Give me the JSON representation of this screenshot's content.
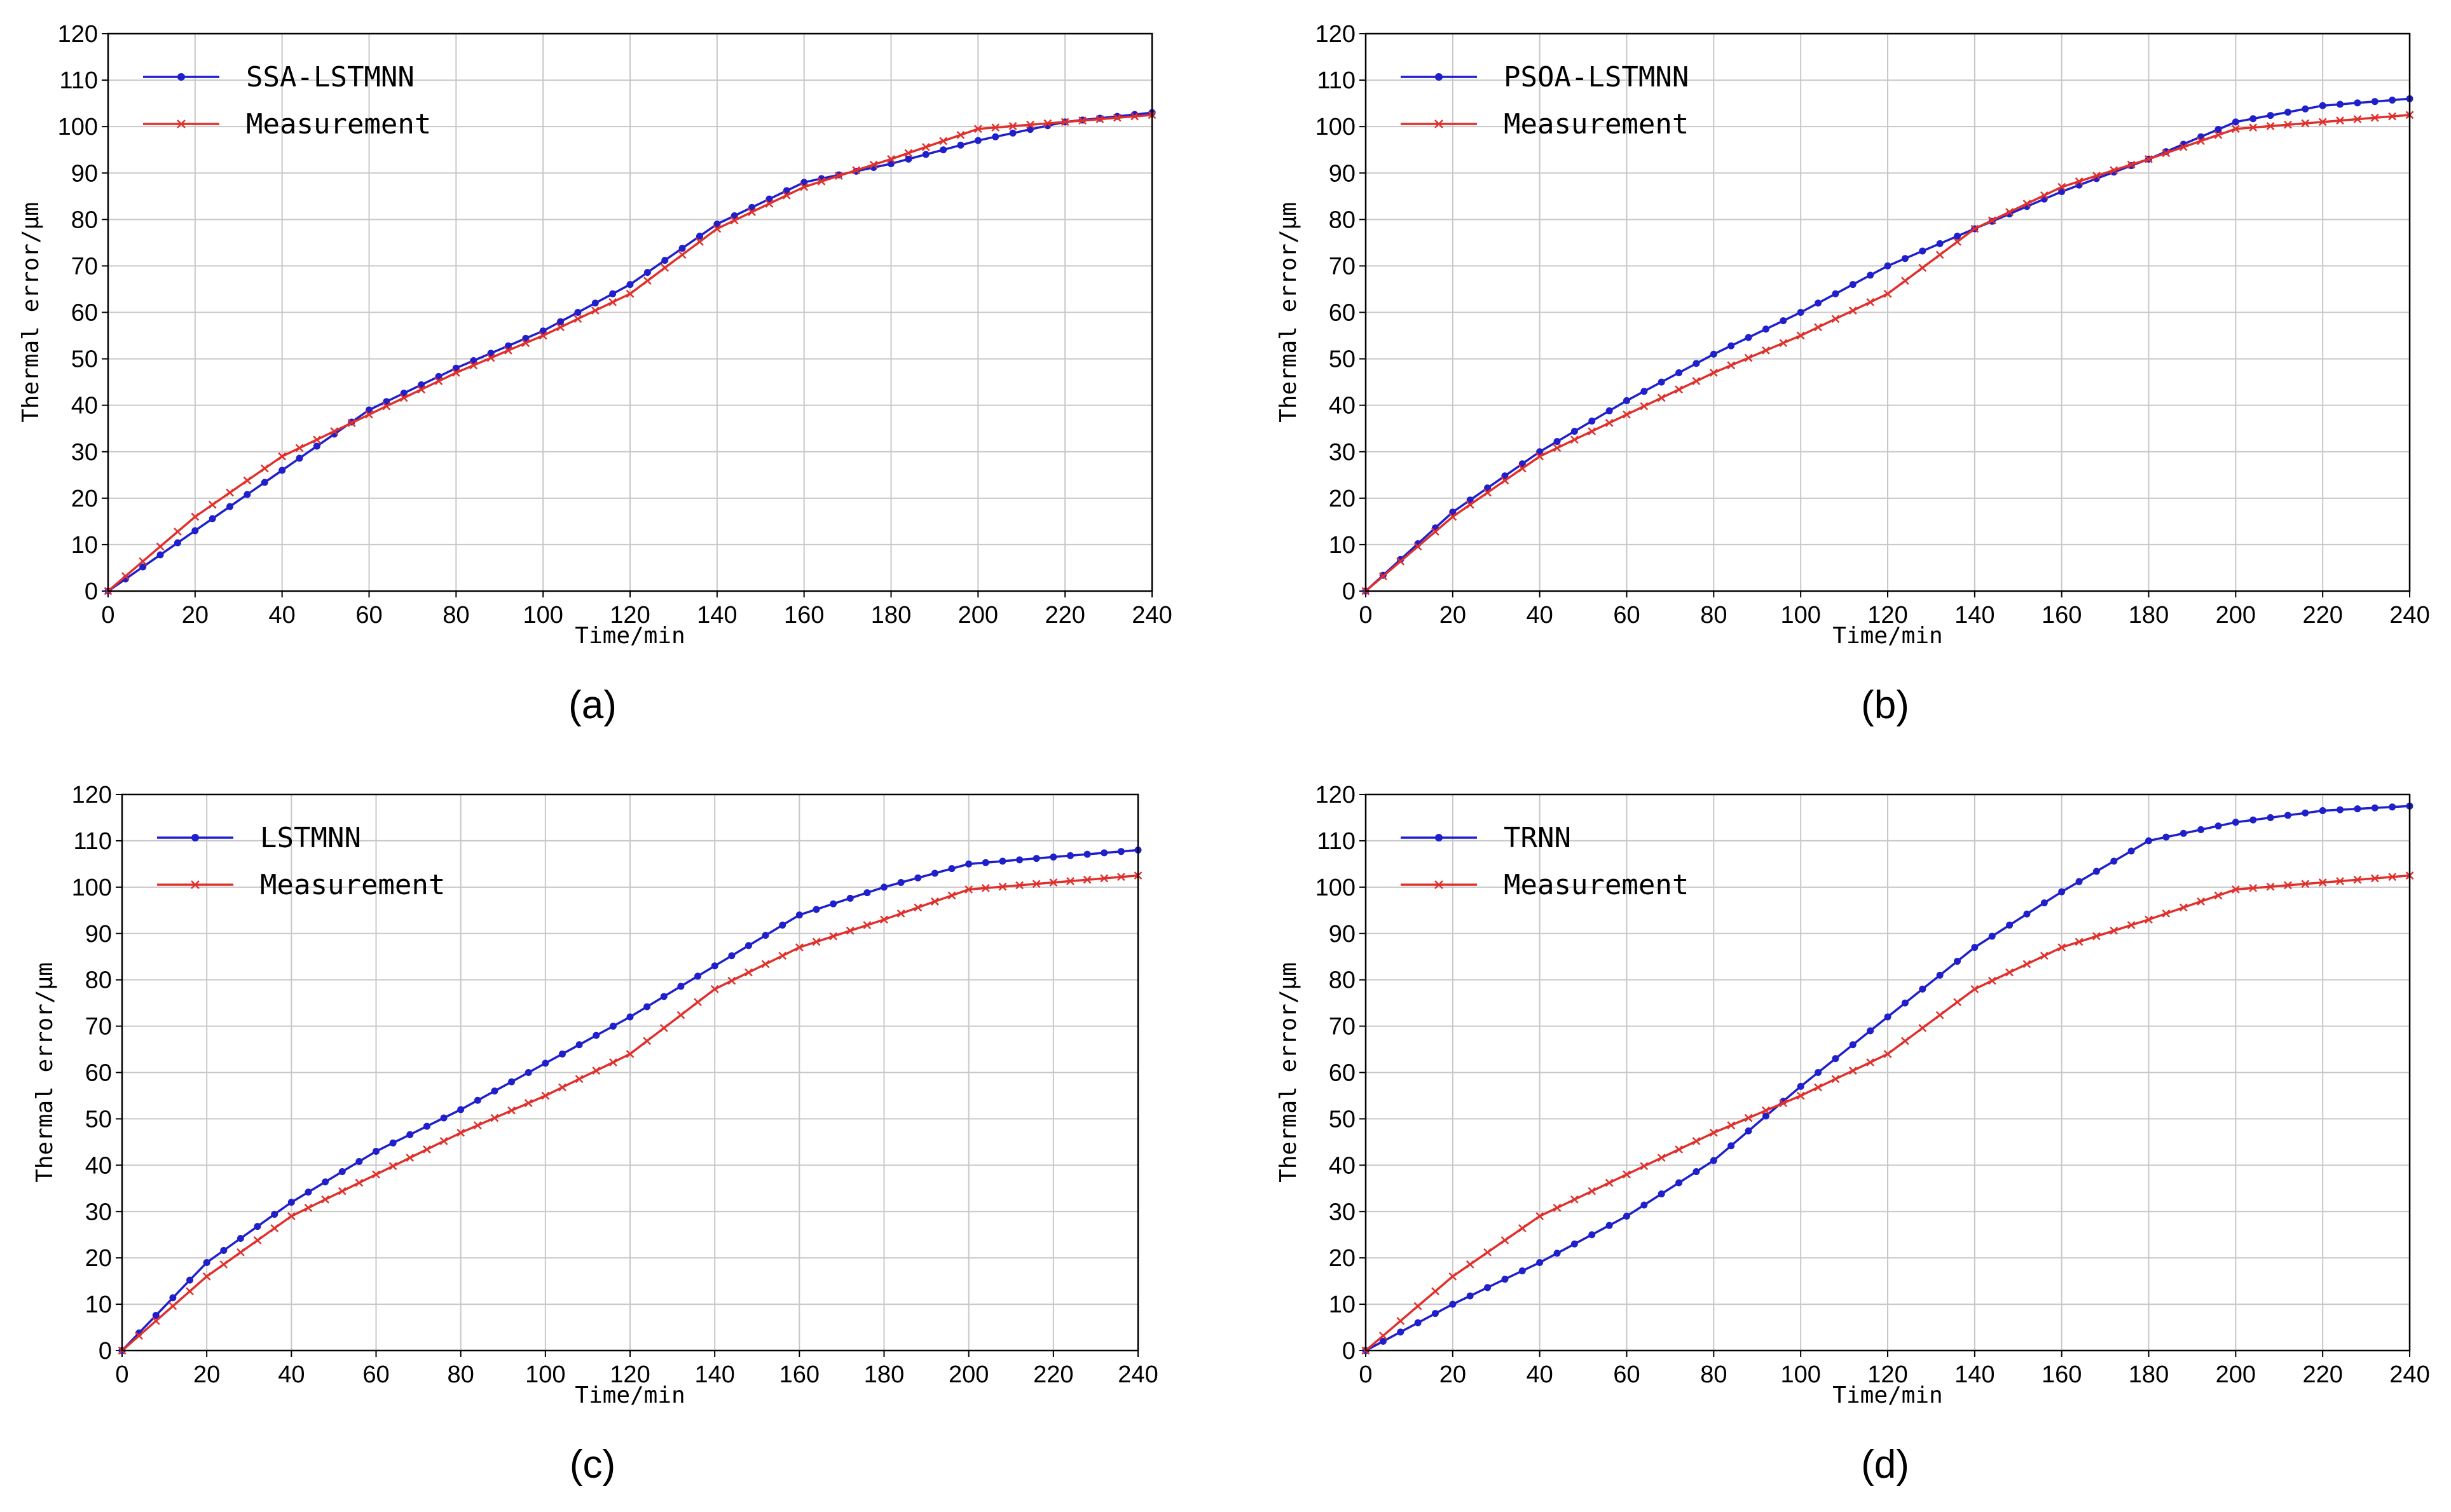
{
  "figure": {
    "background": "#ffffff"
  },
  "colors": {
    "model": "#1f1fcc",
    "measurement": "#e0302c",
    "grid": "#c8c8c8",
    "axis": "#000000"
  },
  "chart_data": [
    {
      "type": "line",
      "caption": "(a)",
      "xlabel": "Time/min",
      "ylabel": "Thermal error/μm",
      "xlim": [
        0,
        240
      ],
      "ylim": [
        0,
        120
      ],
      "xticks": [
        0,
        20,
        40,
        60,
        80,
        100,
        120,
        140,
        160,
        180,
        200,
        220,
        240
      ],
      "yticks": [
        0,
        10,
        20,
        30,
        40,
        50,
        60,
        70,
        80,
        90,
        100,
        110,
        120
      ],
      "grid": true,
      "legend": "top-left",
      "series": [
        {
          "name": "SSA-LSTMNN",
          "marker": "dot",
          "color": "#1f1fcc",
          "x": [
            0,
            20,
            40,
            60,
            80,
            100,
            120,
            140,
            160,
            180,
            200,
            220,
            240
          ],
          "y": [
            0,
            13,
            26,
            39,
            48,
            56,
            66,
            79,
            88,
            92,
            97,
            101,
            103
          ]
        },
        {
          "name": "Measurement",
          "marker": "x",
          "color": "#e0302c",
          "x": [
            0,
            20,
            40,
            60,
            80,
            100,
            120,
            140,
            160,
            180,
            200,
            220,
            240
          ],
          "y": [
            0,
            16,
            29,
            38,
            47,
            55,
            64,
            78,
            87,
            93,
            99.5,
            101,
            102.5
          ]
        }
      ]
    },
    {
      "type": "line",
      "caption": "(b)",
      "xlabel": "Time/min",
      "ylabel": "Thermal error/μm",
      "xlim": [
        0,
        240
      ],
      "ylim": [
        0,
        120
      ],
      "xticks": [
        0,
        20,
        40,
        60,
        80,
        100,
        120,
        140,
        160,
        180,
        200,
        220,
        240
      ],
      "yticks": [
        0,
        10,
        20,
        30,
        40,
        50,
        60,
        70,
        80,
        90,
        100,
        110,
        120
      ],
      "grid": true,
      "legend": "top-left",
      "series": [
        {
          "name": "PSOA-LSTMNN",
          "marker": "dot",
          "color": "#1f1fcc",
          "x": [
            0,
            20,
            40,
            60,
            80,
            100,
            120,
            140,
            160,
            180,
            200,
            220,
            240
          ],
          "y": [
            0,
            17,
            30,
            41,
            51,
            60,
            70,
            78,
            86,
            93,
            101,
            104.5,
            106
          ]
        },
        {
          "name": "Measurement",
          "marker": "x",
          "color": "#e0302c",
          "x": [
            0,
            20,
            40,
            60,
            80,
            100,
            120,
            140,
            160,
            180,
            200,
            220,
            240
          ],
          "y": [
            0,
            16,
            29,
            38,
            47,
            55,
            64,
            78,
            87,
            93,
            99.5,
            101,
            102.5
          ]
        }
      ]
    },
    {
      "type": "line",
      "caption": "(c)",
      "xlabel": "Time/min",
      "ylabel": "Thermal error/μm",
      "xlim": [
        0,
        240
      ],
      "ylim": [
        0,
        120
      ],
      "xticks": [
        0,
        20,
        40,
        60,
        80,
        100,
        120,
        140,
        160,
        180,
        200,
        220,
        240
      ],
      "yticks": [
        0,
        10,
        20,
        30,
        40,
        50,
        60,
        70,
        80,
        90,
        100,
        110,
        120
      ],
      "grid": true,
      "legend": "top-left",
      "series": [
        {
          "name": "LSTMNN",
          "marker": "dot",
          "color": "#1f1fcc",
          "x": [
            0,
            20,
            40,
            60,
            80,
            100,
            120,
            140,
            160,
            180,
            200,
            220,
            240
          ],
          "y": [
            0,
            19,
            32,
            43,
            52,
            62,
            72,
            83,
            94,
            100,
            105,
            106.5,
            108
          ]
        },
        {
          "name": "Measurement",
          "marker": "x",
          "color": "#e0302c",
          "x": [
            0,
            20,
            40,
            60,
            80,
            100,
            120,
            140,
            160,
            180,
            200,
            220,
            240
          ],
          "y": [
            0,
            16,
            29,
            38,
            47,
            55,
            64,
            78,
            87,
            93,
            99.5,
            101,
            102.5
          ]
        }
      ]
    },
    {
      "type": "line",
      "caption": "(d)",
      "xlabel": "Time/min",
      "ylabel": "Thermal error/μm",
      "xlim": [
        0,
        240
      ],
      "ylim": [
        0,
        120
      ],
      "xticks": [
        0,
        20,
        40,
        60,
        80,
        100,
        120,
        140,
        160,
        180,
        200,
        220,
        240
      ],
      "yticks": [
        0,
        10,
        20,
        30,
        40,
        50,
        60,
        70,
        80,
        90,
        100,
        110,
        120
      ],
      "grid": true,
      "legend": "top-left",
      "series": [
        {
          "name": "TRNN",
          "marker": "dot",
          "color": "#1f1fcc",
          "x": [
            0,
            20,
            40,
            60,
            80,
            100,
            120,
            140,
            160,
            180,
            200,
            220,
            240
          ],
          "y": [
            0,
            10,
            19,
            29,
            41,
            57,
            72,
            87,
            99,
            110,
            114,
            116.5,
            117.5
          ]
        },
        {
          "name": "Measurement",
          "marker": "x",
          "color": "#e0302c",
          "x": [
            0,
            20,
            40,
            60,
            80,
            100,
            120,
            140,
            160,
            180,
            200,
            220,
            240
          ],
          "y": [
            0,
            16,
            29,
            38,
            47,
            55,
            64,
            78,
            87,
            93,
            99.5,
            101,
            102.5
          ]
        }
      ]
    }
  ]
}
